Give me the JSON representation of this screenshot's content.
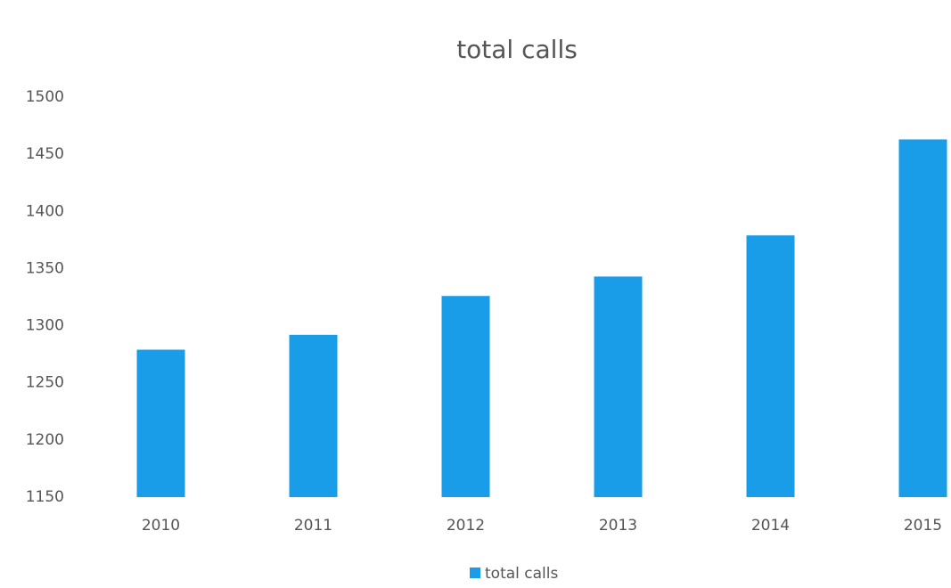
{
  "chart_data": {
    "type": "bar",
    "title": "total calls",
    "categories": [
      "2010",
      "2011",
      "2012",
      "2013",
      "2014",
      "2015"
    ],
    "series": [
      {
        "name": "total calls",
        "color": "#1a9de8",
        "values": [
          1279,
          1292,
          1326,
          1343,
          1379,
          1463
        ]
      }
    ],
    "ylim": [
      1150,
      1500
    ],
    "yticks": [
      1150,
      1200,
      1250,
      1300,
      1350,
      1400,
      1450,
      1500
    ],
    "grid": false,
    "legend": "bottom"
  }
}
